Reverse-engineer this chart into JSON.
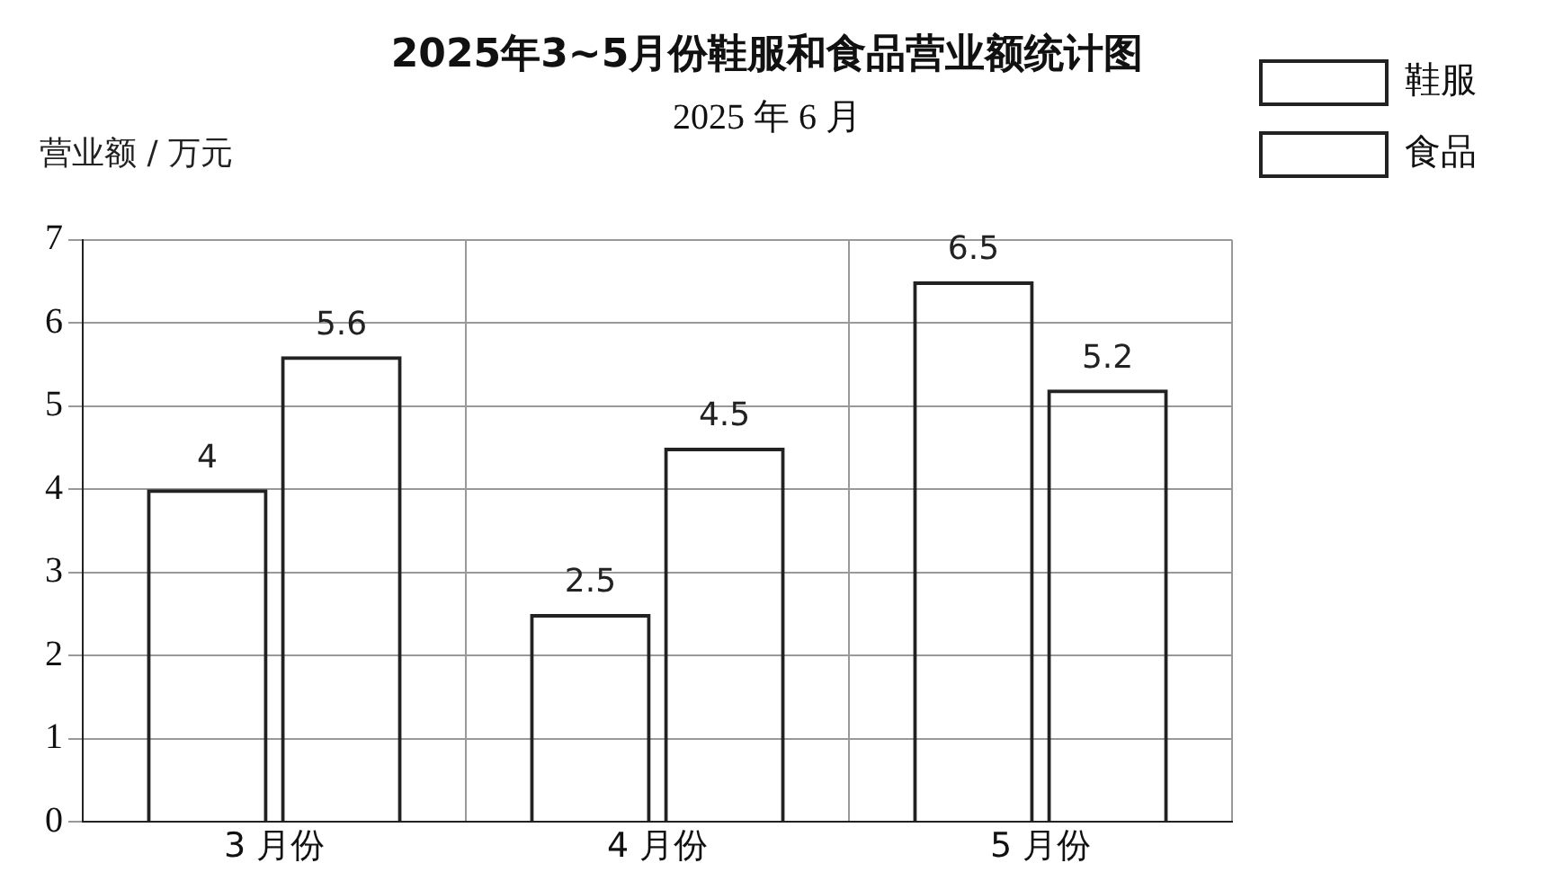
{
  "chart_data": {
    "type": "bar",
    "title": "2025年3~5月份鞋服和食品营业额统计图",
    "subtitle": "2025 年 6 月",
    "ylabel": "营业额 / 万元",
    "categories": [
      "3 月份",
      "4 月份",
      "5 月份"
    ],
    "series": [
      {
        "name": "鞋服",
        "color": "#222222",
        "values": [
          4,
          2.5,
          6.5
        ]
      },
      {
        "name": "食品",
        "color": "#222222",
        "values": [
          5.6,
          4.5,
          5.2
        ]
      }
    ],
    "ylim": [
      0,
      7
    ],
    "yticks": [
      0,
      1,
      2,
      3,
      4,
      5,
      6,
      7
    ],
    "grid": true,
    "legend": "top right",
    "data_labels": true
  }
}
